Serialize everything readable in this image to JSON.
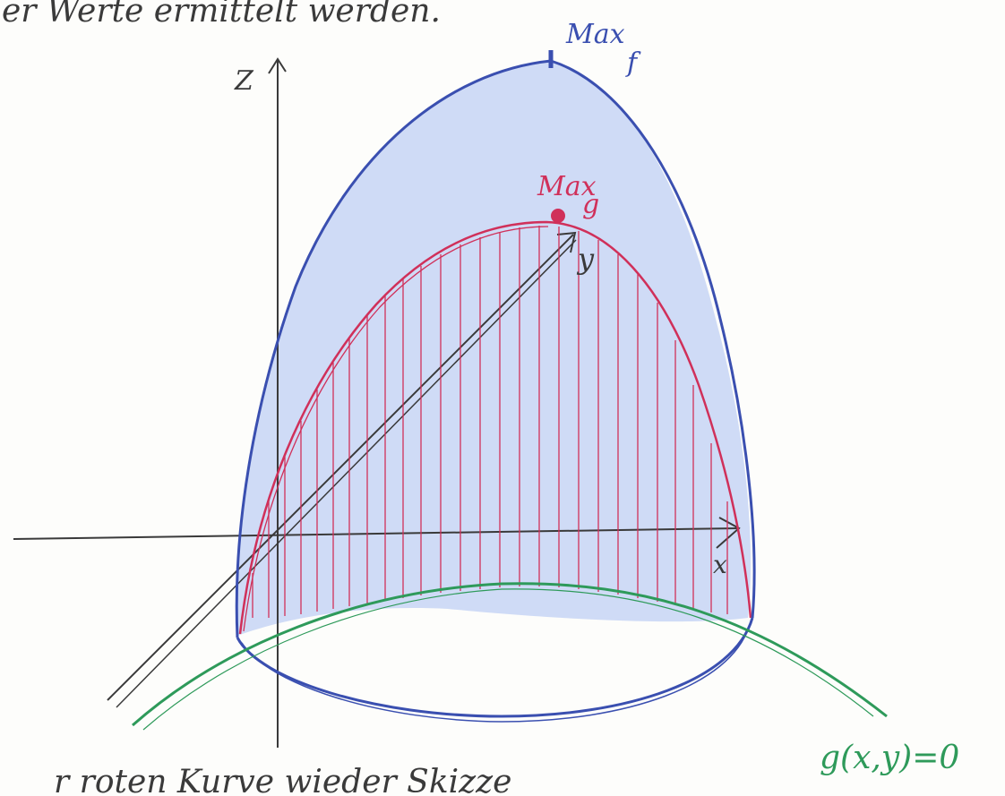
{
  "top_text": "er Werte ermittelt werden.",
  "bottom_text": "r roten Kurve wieder Skizze",
  "labels": {
    "z_axis": "Z",
    "y_axis": "y",
    "x_axis": "x",
    "max_f": "Max",
    "max_f_sub": "f",
    "max_g": "Max",
    "max_g_sub": "g",
    "constraint": "g(x,y)=0"
  },
  "colors": {
    "ink": "#3a3a3a",
    "blue": "#3a4fb0",
    "blue_fill": "#a9c0f2",
    "red": "#d0305a",
    "green": "#2e9a5a"
  }
}
